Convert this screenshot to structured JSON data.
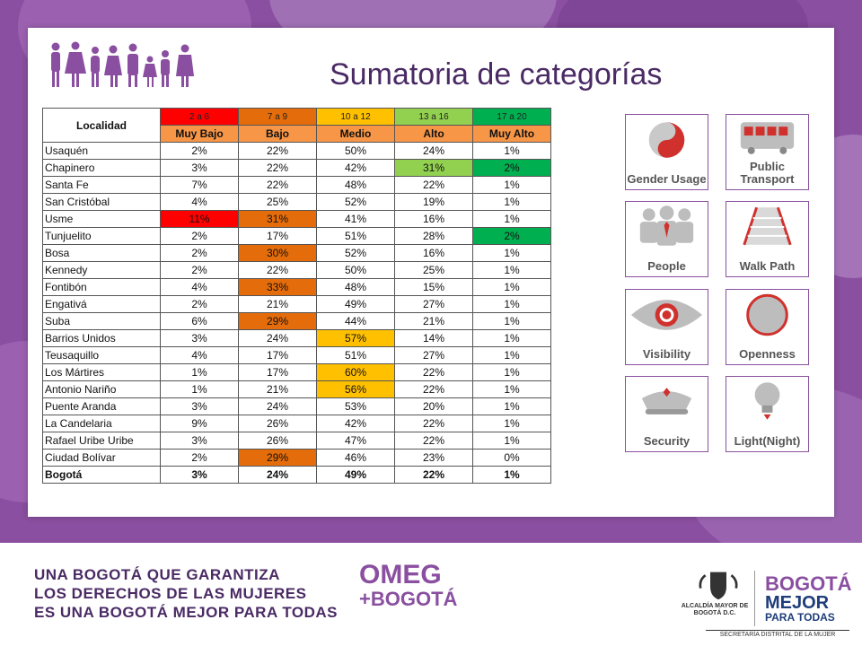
{
  "title": "Sumatoria de categorías",
  "table": {
    "corner_header": "Localidad",
    "ranges": [
      "2 a 6",
      "7 a 9",
      "10 a 12",
      "13 a 16",
      "17 a 20"
    ],
    "range_colors": [
      "#ff0000",
      "#e46c0a",
      "#ffc000",
      "#92d050",
      "#00b050"
    ],
    "categories": [
      "Muy Bajo",
      "Bajo",
      "Medio",
      "Alto",
      "Muy Alto"
    ],
    "rows": [
      {
        "name": "Usaquén",
        "values": [
          "2%",
          "22%",
          "50%",
          "24%",
          "1%"
        ],
        "hl": [
          null,
          null,
          null,
          null,
          null
        ]
      },
      {
        "name": "Chapinero",
        "values": [
          "3%",
          "22%",
          "42%",
          "31%",
          "2%"
        ],
        "hl": [
          null,
          null,
          null,
          "#92d050",
          "#00b050"
        ]
      },
      {
        "name": "Santa Fe",
        "values": [
          "7%",
          "22%",
          "48%",
          "22%",
          "1%"
        ],
        "hl": [
          null,
          null,
          null,
          null,
          null
        ]
      },
      {
        "name": "San Cristóbal",
        "values": [
          "4%",
          "25%",
          "52%",
          "19%",
          "1%"
        ],
        "hl": [
          null,
          null,
          null,
          null,
          null
        ]
      },
      {
        "name": "Usme",
        "values": [
          "11%",
          "31%",
          "41%",
          "16%",
          "1%"
        ],
        "hl": [
          "#ff0000",
          "#e46c0a",
          null,
          null,
          null
        ]
      },
      {
        "name": "Tunjuelito",
        "values": [
          "2%",
          "17%",
          "51%",
          "28%",
          "2%"
        ],
        "hl": [
          null,
          null,
          null,
          null,
          "#00b050"
        ]
      },
      {
        "name": "Bosa",
        "values": [
          "2%",
          "30%",
          "52%",
          "16%",
          "1%"
        ],
        "hl": [
          null,
          "#e46c0a",
          null,
          null,
          null
        ]
      },
      {
        "name": "Kennedy",
        "values": [
          "2%",
          "22%",
          "50%",
          "25%",
          "1%"
        ],
        "hl": [
          null,
          null,
          null,
          null,
          null
        ]
      },
      {
        "name": "Fontibón",
        "values": [
          "4%",
          "33%",
          "48%",
          "15%",
          "1%"
        ],
        "hl": [
          null,
          "#e46c0a",
          null,
          null,
          null
        ]
      },
      {
        "name": "Engativá",
        "values": [
          "2%",
          "21%",
          "49%",
          "27%",
          "1%"
        ],
        "hl": [
          null,
          null,
          null,
          null,
          null
        ]
      },
      {
        "name": "Suba",
        "values": [
          "6%",
          "29%",
          "44%",
          "21%",
          "1%"
        ],
        "hl": [
          null,
          "#e46c0a",
          null,
          null,
          null
        ]
      },
      {
        "name": "Barrios Unidos",
        "values": [
          "3%",
          "24%",
          "57%",
          "14%",
          "1%"
        ],
        "hl": [
          null,
          null,
          "#ffc000",
          null,
          null
        ]
      },
      {
        "name": "Teusaquillo",
        "values": [
          "4%",
          "17%",
          "51%",
          "27%",
          "1%"
        ],
        "hl": [
          null,
          null,
          null,
          null,
          null
        ]
      },
      {
        "name": "Los Mártires",
        "values": [
          "1%",
          "17%",
          "60%",
          "22%",
          "1%"
        ],
        "hl": [
          null,
          null,
          "#ffc000",
          null,
          null
        ]
      },
      {
        "name": "Antonio Nariño",
        "values": [
          "1%",
          "21%",
          "56%",
          "22%",
          "1%"
        ],
        "hl": [
          null,
          null,
          "#ffc000",
          null,
          null
        ]
      },
      {
        "name": "Puente Aranda",
        "values": [
          "3%",
          "24%",
          "53%",
          "20%",
          "1%"
        ],
        "hl": [
          null,
          null,
          null,
          null,
          null
        ]
      },
      {
        "name": "La Candelaria",
        "values": [
          "9%",
          "26%",
          "42%",
          "22%",
          "1%"
        ],
        "hl": [
          null,
          null,
          null,
          null,
          null
        ]
      },
      {
        "name": "Rafael Uribe Uribe",
        "values": [
          "3%",
          "26%",
          "47%",
          "22%",
          "1%"
        ],
        "hl": [
          null,
          null,
          null,
          null,
          null
        ]
      },
      {
        "name": "Ciudad Bolívar",
        "values": [
          "2%",
          "29%",
          "46%",
          "23%",
          "0%"
        ],
        "hl": [
          null,
          "#e46c0a",
          null,
          null,
          null
        ]
      }
    ],
    "total": {
      "name": "Bogotá",
      "values": [
        "3%",
        "24%",
        "49%",
        "22%",
        "1%"
      ]
    }
  },
  "icons": [
    {
      "label": "Gender Usage",
      "icon": "gender-usage-icon"
    },
    {
      "label": "Public Transport",
      "icon": "bus-icon"
    },
    {
      "label": "People",
      "icon": "people-icon"
    },
    {
      "label": "Walk Path",
      "icon": "walk-path-icon"
    },
    {
      "label": "Visibility",
      "icon": "eye-icon"
    },
    {
      "label": "Openness",
      "icon": "openness-icon"
    },
    {
      "label": "Security",
      "icon": "security-cap-icon"
    },
    {
      "label": "Light(Night)",
      "icon": "lightbulb-icon"
    }
  ],
  "footer": {
    "line1": "UNA BOGOTÁ QUE GARANTIZA",
    "line2": "LOS DERECHOS DE LAS MUJERES",
    "line3": "ES UNA BOGOTÁ MEJOR PARA TODAS",
    "omeg_top": "OMEG",
    "omeg_bottom": "+BOGOTÁ",
    "alcaldia": "ALCALDÍA MAYOR DE BOGOTÁ D.C.",
    "logo_line1": "BOGOTÁ",
    "logo_line2": "MEJOR",
    "logo_line3": "PARA TODAS",
    "secretaria": "SECRETARÍA DISTRITAL DE LA MUJER"
  },
  "colors": {
    "purple": "#8a4fa0",
    "dark_purple": "#4a2a64",
    "orange_header": "#f79646"
  }
}
